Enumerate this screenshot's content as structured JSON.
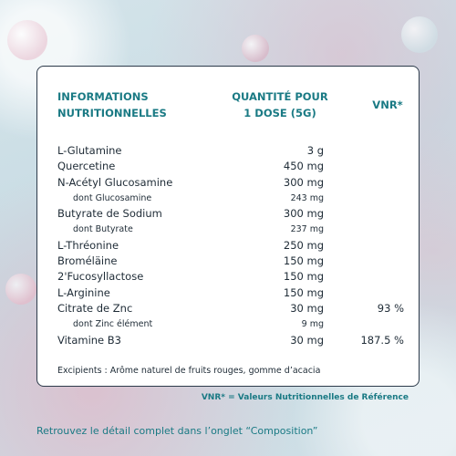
{
  "header": {
    "col1_line1": "INFORMATIONS",
    "col1_line2": "NUTRITIONNELLES",
    "col2_line1": "QUANTITÉ POUR",
    "col2_line2": "1 DOSE (5G)",
    "col3": "VNR*"
  },
  "rows": [
    {
      "name": "L-Glutamine",
      "qty": "3 g",
      "vnr": ""
    },
    {
      "name": "Quercetine",
      "qty": "450 mg",
      "vnr": ""
    },
    {
      "name": "N-Acétyl Glucosamine",
      "qty": "300 mg",
      "vnr": ""
    },
    {
      "name": "dont Glucosamine",
      "qty": "243 mg",
      "vnr": ""
    },
    {
      "name": "Butyrate de Sodium",
      "qty": "300 mg",
      "vnr": ""
    },
    {
      "name": "dont Butyrate",
      "qty": "237 mg",
      "vnr": ""
    },
    {
      "name": "L-Thréonine",
      "qty": "250 mg",
      "vnr": ""
    },
    {
      "name": "Broméläine",
      "qty": "150 mg",
      "vnr": ""
    },
    {
      "name": "2'Fucosyllactose",
      "qty": "150 mg",
      "vnr": ""
    },
    {
      "name": "L-Arginine",
      "qty": "150 mg",
      "vnr": ""
    },
    {
      "name": "Citrate de Znc",
      "qty": "30 mg",
      "vnr": "93 %"
    },
    {
      "name": "dont Zinc élément",
      "qty": "9 mg",
      "vnr": ""
    },
    {
      "name": "Vitamine B3",
      "qty": "30 mg",
      "vnr": "187.5 %"
    }
  ],
  "excipients": "Excipients : Arôme naturel de fruits rouges, gomme d’acacia",
  "vnr_note": "VNR* = Valeurs Nutritionnelles de Référence",
  "footer": "Retrouvez le détail complet dans l’onglet “Composition”",
  "colors": {
    "accent": "#1a7a84",
    "text": "#1e2b36",
    "border": "#2c3a4a"
  }
}
